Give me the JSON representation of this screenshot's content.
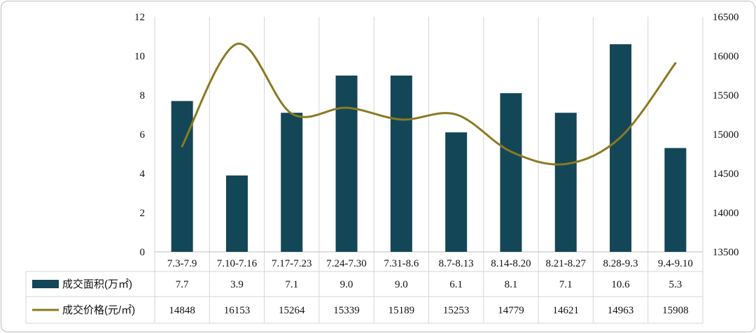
{
  "chart_data": {
    "type": "bar",
    "categories": [
      "7.3-7.9",
      "7.10-7.16",
      "7.17-7.23",
      "7.24-7.30",
      "7.31-8.6",
      "8.7-8.13",
      "8.14-8.20",
      "8.21-8.27",
      "8.28-9.3",
      "9.4-9.10"
    ],
    "series": [
      {
        "name": "成交面积(万㎡)",
        "type": "bar",
        "axis": "left",
        "color": "#134656",
        "values": [
          7.7,
          3.9,
          7.1,
          9.0,
          9.0,
          6.1,
          8.1,
          7.1,
          10.6,
          5.3
        ],
        "labels": [
          "7.7",
          "3.9",
          "7.1",
          "9.0",
          "9.0",
          "6.1",
          "8.1",
          "7.1",
          "10.6",
          "5.3"
        ]
      },
      {
        "name": "成交价格(元/㎡)",
        "type": "line",
        "axis": "right",
        "color": "#8a7a24",
        "values": [
          14848,
          16153,
          15264,
          15339,
          15189,
          15253,
          14779,
          14621,
          14963,
          15908
        ],
        "labels": [
          "14848",
          "16153",
          "15264",
          "15339",
          "15189",
          "15253",
          "14779",
          "14621",
          "14963",
          "15908"
        ]
      }
    ],
    "ylim": [
      0,
      12
    ],
    "y_ticks": [
      "0",
      "2",
      "4",
      "6",
      "8",
      "10",
      "12"
    ],
    "y2lim": [
      13500,
      16500
    ],
    "y2_ticks": [
      "13500",
      "14000",
      "14500",
      "15000",
      "15500",
      "16000",
      "16500"
    ],
    "grid": "vertical-category",
    "legend": "data-table"
  }
}
